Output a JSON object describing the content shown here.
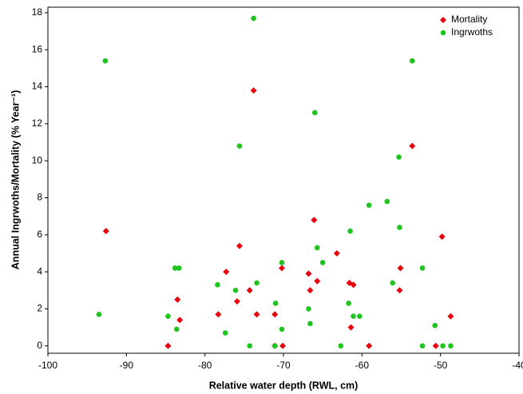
{
  "chart_data": {
    "type": "scatter",
    "xlabel": "Relative water depth (RWL, cm)",
    "ylabel": "Annual Ingrwoths/Mortality (% Year⁻¹)",
    "xlim": [
      -100,
      -40
    ],
    "ylim": [
      -0.4,
      18.3
    ],
    "xticks": [
      -100,
      -90,
      -80,
      -70,
      -60,
      -50,
      -40
    ],
    "yticks": [
      0,
      2,
      4,
      6,
      8,
      10,
      12,
      14,
      16,
      18
    ],
    "grid": false,
    "legend": "upper right",
    "series": [
      {
        "name": "Mortality",
        "color": "#e8000b",
        "marker": "diamond",
        "x": [
          -92.6,
          -84.7,
          -83.5,
          -83.2,
          -78.3,
          -77.3,
          -75.9,
          -75.6,
          -74.3,
          -73.8,
          -73.4,
          -70.2,
          -70.1,
          -71.1,
          -71.1,
          -66.8,
          -66.6,
          -66.1,
          -65.7,
          -63.2,
          -61.6,
          -61.1,
          -61.4,
          -59.1,
          -55.2,
          -55.1,
          -53.6,
          -50.6,
          -49.8,
          -48.7
        ],
        "values": [
          6.2,
          0,
          2.5,
          1.4,
          1.7,
          4.0,
          2.4,
          5.4,
          3.0,
          13.8,
          1.7,
          4.2,
          0,
          1.7,
          0,
          3.9,
          3.0,
          6.8,
          3.5,
          5.0,
          3.4,
          3.3,
          1.0,
          0,
          3.0,
          4.2,
          10.8,
          0,
          5.9,
          1.6
        ]
      },
      {
        "name": "Ingrwoths",
        "color": "#1fc41f",
        "marker": "circle",
        "x": [
          -93.5,
          -92.7,
          -84.7,
          -83.8,
          -83.3,
          -83.6,
          -78.4,
          -77.4,
          -76.1,
          -75.6,
          -74.3,
          -73.8,
          -73.4,
          -70.2,
          -70.2,
          -71.0,
          -71.1,
          -66.8,
          -66.6,
          -66.0,
          -65.7,
          -65.0,
          -62.7,
          -61.7,
          -61.5,
          -61.1,
          -60.3,
          -59.1,
          -56.8,
          -56.1,
          -55.2,
          -55.3,
          -53.6,
          -52.3,
          -52.3,
          -50.7,
          -49.7,
          -48.7
        ],
        "values": [
          1.7,
          15.4,
          1.6,
          4.2,
          4.2,
          0.9,
          3.3,
          0.7,
          3.0,
          10.8,
          0,
          17.7,
          3.4,
          4.5,
          0.9,
          2.3,
          0,
          2.0,
          1.2,
          12.6,
          5.3,
          4.5,
          0,
          2.3,
          6.2,
          1.6,
          1.6,
          7.6,
          7.8,
          3.4,
          6.4,
          10.2,
          15.4,
          4.2,
          0,
          1.1,
          0,
          0
        ]
      }
    ]
  }
}
